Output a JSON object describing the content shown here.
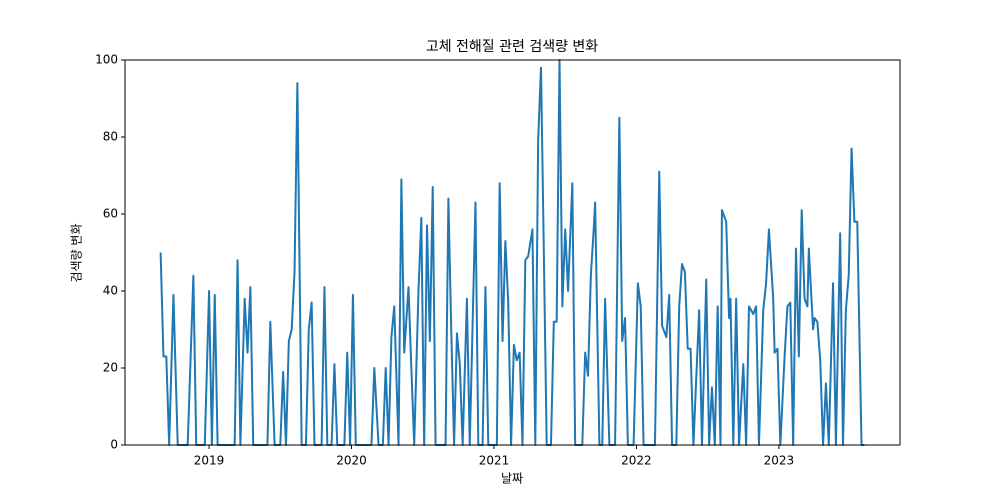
{
  "chart_data": {
    "type": "line",
    "title": "고체 전해질 관련 검색량 변화",
    "x_label": "날짜",
    "y_label": "검색량 변화",
    "color": "#1f77b4",
    "xlim": [
      2018.41,
      2023.85
    ],
    "xticks": [
      2019,
      2020,
      2021,
      2022,
      2023
    ],
    "ylim": [
      0,
      100
    ],
    "yticks": [
      0,
      20,
      40,
      60,
      80,
      100
    ],
    "x": [
      2018.66,
      2018.68,
      2018.7,
      2018.72,
      2018.75,
      2018.78,
      2018.85,
      2018.89,
      2018.91,
      2018.97,
      2019.0,
      2019.02,
      2019.04,
      2019.06,
      2019.18,
      2019.2,
      2019.22,
      2019.25,
      2019.27,
      2019.29,
      2019.31,
      2019.41,
      2019.43,
      2019.46,
      2019.5,
      2019.52,
      2019.54,
      2019.56,
      2019.58,
      2019.6,
      2019.62,
      2019.65,
      2019.68,
      2019.7,
      2019.72,
      2019.74,
      2019.79,
      2019.81,
      2019.83,
      2019.86,
      2019.88,
      2019.9,
      2019.95,
      2019.97,
      2019.99,
      2020.01,
      2020.03,
      2020.14,
      2020.16,
      2020.19,
      2020.22,
      2020.24,
      2020.26,
      2020.28,
      2020.3,
      2020.33,
      2020.35,
      2020.37,
      2020.4,
      2020.42,
      2020.44,
      2020.47,
      2020.49,
      2020.51,
      2020.53,
      2020.55,
      2020.57,
      2020.59,
      2020.66,
      2020.68,
      2020.7,
      2020.72,
      2020.74,
      2020.76,
      2020.78,
      2020.81,
      2020.83,
      2020.87,
      2020.89,
      2020.92,
      2020.94,
      2020.96,
      2021.02,
      2021.04,
      2021.06,
      2021.08,
      2021.1,
      2021.12,
      2021.14,
      2021.16,
      2021.18,
      2021.2,
      2021.22,
      2021.24,
      2021.27,
      2021.29,
      2021.31,
      2021.33,
      2021.35,
      2021.37,
      2021.4,
      2021.42,
      2021.44,
      2021.46,
      2021.48,
      2021.5,
      2021.52,
      2021.55,
      2021.57,
      2021.62,
      2021.64,
      2021.66,
      2021.68,
      2021.7,
      2021.71,
      2021.74,
      2021.76,
      2021.78,
      2021.81,
      2021.85,
      2021.88,
      2021.9,
      2021.92,
      2021.94,
      2021.98,
      2022.01,
      2022.03,
      2022.05,
      2022.13,
      2022.16,
      2022.18,
      2022.21,
      2022.23,
      2022.25,
      2022.28,
      2022.3,
      2022.32,
      2022.34,
      2022.36,
      2022.38,
      2022.4,
      2022.44,
      2022.46,
      2022.49,
      2022.51,
      2022.53,
      2022.55,
      2022.57,
      2022.59,
      2022.6,
      2022.63,
      2022.65,
      2022.66,
      2022.68,
      2022.7,
      2022.72,
      2022.75,
      2022.77,
      2022.79,
      2022.82,
      2022.84,
      2022.86,
      2022.89,
      2022.91,
      2022.93,
      2022.96,
      2022.97,
      2022.99,
      2023.01,
      2023.04,
      2023.06,
      2023.08,
      2023.1,
      2023.12,
      2023.14,
      2023.16,
      2023.18,
      2023.2,
      2023.21,
      2023.24,
      2023.25,
      2023.27,
      2023.29,
      2023.31,
      2023.33,
      2023.35,
      2023.38,
      2023.4,
      2023.43,
      2023.45,
      2023.47,
      2023.49,
      2023.51,
      2023.53,
      2023.55,
      2023.58,
      2023.6
    ],
    "values": [
      50,
      23,
      23,
      0,
      39,
      0,
      0,
      44,
      0,
      0,
      40,
      0,
      39,
      0,
      0,
      48,
      0,
      38,
      24,
      41,
      0,
      0,
      32,
      0,
      0,
      19,
      0,
      27,
      30,
      45,
      94,
      0,
      0,
      30,
      37,
      0,
      0,
      41,
      0,
      0,
      21,
      0,
      0,
      24,
      0,
      39,
      0,
      0,
      20,
      0,
      0,
      20,
      0,
      28,
      36,
      0,
      69,
      24,
      41,
      20,
      0,
      40,
      59,
      0,
      57,
      27,
      67,
      0,
      0,
      64,
      30,
      0,
      29,
      21,
      0,
      38,
      0,
      63,
      0,
      0,
      41,
      0,
      0,
      68,
      27,
      53,
      37,
      0,
      26,
      22,
      24,
      0,
      48,
      49,
      56,
      0,
      79,
      98,
      50,
      0,
      0,
      32,
      32,
      100,
      36,
      56,
      40,
      68,
      0,
      0,
      24,
      18,
      44,
      56,
      63,
      0,
      0,
      38,
      0,
      0,
      85,
      27,
      33,
      0,
      0,
      42,
      36,
      0,
      0,
      71,
      31,
      28,
      39,
      0,
      0,
      36,
      47,
      45,
      25,
      25,
      0,
      35,
      0,
      43,
      0,
      15,
      0,
      36,
      0,
      61,
      58,
      33,
      38,
      0,
      38,
      0,
      21,
      0,
      36,
      34,
      36,
      0,
      35,
      42,
      56,
      38,
      24,
      25,
      0,
      23,
      36,
      37,
      0,
      51,
      23,
      61,
      38,
      36,
      51,
      30,
      33,
      32,
      22,
      0,
      16,
      0,
      42,
      0,
      55,
      0,
      35,
      44,
      77,
      58,
      58,
      0,
      0
    ]
  }
}
